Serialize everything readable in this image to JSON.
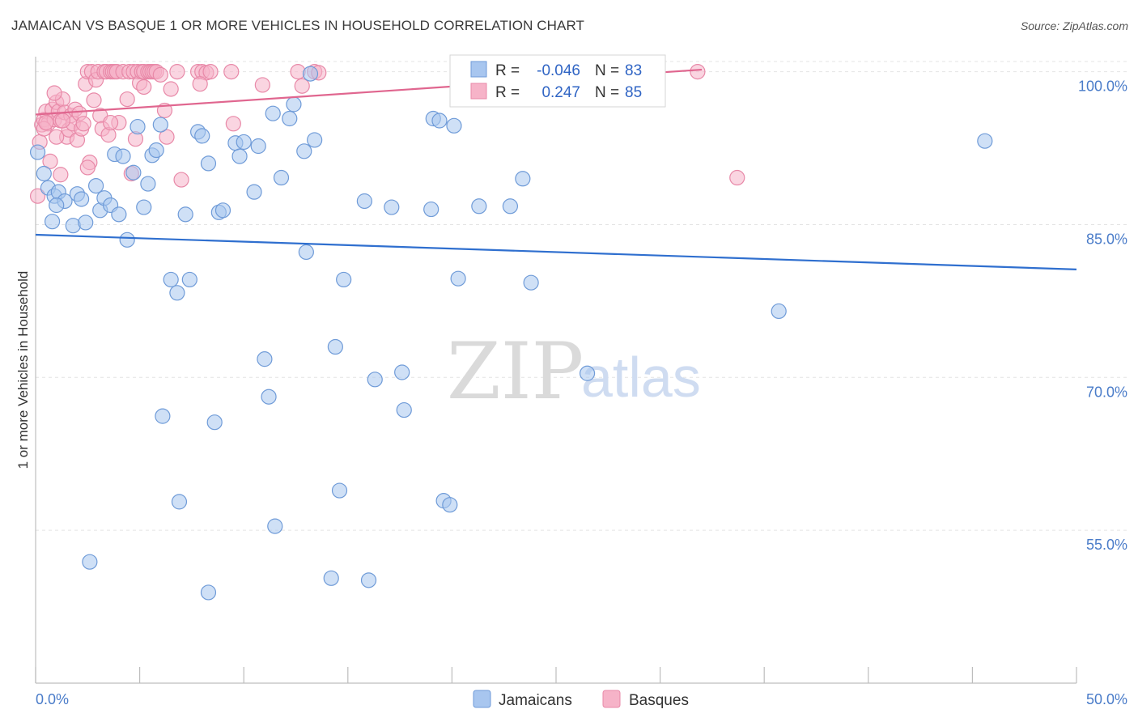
{
  "title": "JAMAICAN VS BASQUE 1 OR MORE VEHICLES IN HOUSEHOLD CORRELATION CHART",
  "source": "Source: ZipAtlas.com",
  "watermark": {
    "zip": "ZIP",
    "atlas": "atlas"
  },
  "colors": {
    "jamaican_fill": "#a8c6ef",
    "jamaican_stroke": "#6f9bd8",
    "jamaican_line": "#2f6fcf",
    "basque_fill": "#f6b3c8",
    "basque_stroke": "#e889a8",
    "basque_line": "#e0668f",
    "tick_text": "#4a7cc9",
    "grid": "#e4e4e4"
  },
  "legend_box": {
    "rows": [
      {
        "r_label": "R =",
        "r_value": "-0.046",
        "n_label": "N =",
        "n_value": "83"
      },
      {
        "r_label": "R =",
        "r_value": "0.247",
        "n_label": "N =",
        "n_value": "85"
      }
    ]
  },
  "bottom_legend": [
    "Jamaicans",
    "Basques"
  ],
  "chart_data": {
    "type": "scatter",
    "title": "JAMAICAN VS BASQUE 1 OR MORE VEHICLES IN HOUSEHOLD CORRELATION CHART",
    "xlabel": "",
    "ylabel": "1 or more Vehicles in Household",
    "xlim": [
      0,
      50
    ],
    "ylim": [
      40,
      101
    ],
    "x_tick_labels": [
      "0.0%",
      "50.0%"
    ],
    "y_ticks": [
      55,
      70,
      85,
      100
    ],
    "y_tick_labels": [
      "55.0%",
      "70.0%",
      "85.0%",
      "100.0%"
    ],
    "grid": true,
    "legend": "top-center",
    "series": [
      {
        "name": "Jamaicans",
        "R": -0.046,
        "N": 83,
        "trend": {
          "x": [
            0,
            50
          ],
          "y": [
            84.0,
            80.6
          ]
        },
        "points": [
          [
            0.1,
            92.1
          ],
          [
            0.4,
            90.0
          ],
          [
            0.6,
            88.6
          ],
          [
            0.8,
            85.3
          ],
          [
            0.9,
            87.8
          ],
          [
            1.1,
            88.2
          ],
          [
            1.4,
            87.3
          ],
          [
            1.8,
            84.9
          ],
          [
            2.0,
            88.0
          ],
          [
            2.2,
            87.5
          ],
          [
            2.4,
            85.2
          ],
          [
            2.9,
            88.8
          ],
          [
            3.1,
            86.4
          ],
          [
            3.3,
            87.6
          ],
          [
            3.6,
            86.9
          ],
          [
            3.8,
            91.9
          ],
          [
            4.0,
            86.0
          ],
          [
            4.2,
            91.7
          ],
          [
            4.4,
            83.5
          ],
          [
            4.7,
            90.1
          ],
          [
            4.9,
            94.6
          ],
          [
            5.2,
            86.7
          ],
          [
            5.4,
            89.0
          ],
          [
            5.6,
            91.8
          ],
          [
            5.8,
            92.3
          ],
          [
            6.0,
            94.8
          ],
          [
            6.5,
            79.6
          ],
          [
            6.8,
            78.3
          ],
          [
            7.2,
            86.0
          ],
          [
            7.4,
            79.6
          ],
          [
            7.8,
            94.1
          ],
          [
            8.0,
            93.7
          ],
          [
            8.3,
            91.0
          ],
          [
            8.8,
            86.2
          ],
          [
            9.0,
            86.4
          ],
          [
            9.6,
            93.0
          ],
          [
            9.8,
            91.7
          ],
          [
            10.0,
            93.1
          ],
          [
            10.5,
            88.2
          ],
          [
            10.7,
            92.7
          ],
          [
            11.0,
            71.8
          ],
          [
            11.2,
            68.1
          ],
          [
            11.4,
            95.9
          ],
          [
            11.8,
            89.6
          ],
          [
            12.2,
            95.4
          ],
          [
            12.4,
            96.8
          ],
          [
            12.9,
            92.2
          ],
          [
            13.0,
            82.3
          ],
          [
            13.2,
            99.8
          ],
          [
            13.4,
            93.3
          ],
          [
            14.4,
            73.0
          ],
          [
            14.6,
            58.9
          ],
          [
            14.8,
            79.6
          ],
          [
            15.8,
            87.3
          ],
          [
            16.3,
            69.8
          ],
          [
            17.1,
            86.7
          ],
          [
            17.6,
            70.5
          ],
          [
            17.7,
            66.8
          ],
          [
            19.1,
            95.4
          ],
          [
            19.0,
            86.5
          ],
          [
            19.4,
            95.2
          ],
          [
            19.6,
            57.9
          ],
          [
            19.9,
            57.5
          ],
          [
            20.1,
            94.7
          ],
          [
            20.3,
            79.7
          ],
          [
            21.3,
            86.8
          ],
          [
            22.8,
            86.8
          ],
          [
            23.4,
            89.5
          ],
          [
            23.8,
            79.3
          ],
          [
            26.5,
            70.4
          ],
          [
            28.0,
            97.6
          ],
          [
            29.6,
            100.0
          ],
          [
            35.7,
            76.5
          ],
          [
            45.6,
            93.2
          ],
          [
            2.6,
            51.9
          ],
          [
            6.1,
            66.2
          ],
          [
            6.9,
            57.8
          ],
          [
            8.3,
            48.9
          ],
          [
            8.6,
            65.6
          ],
          [
            11.5,
            55.4
          ],
          [
            14.2,
            50.3
          ],
          [
            16.0,
            50.1
          ],
          [
            1.0,
            86.9
          ]
        ]
      },
      {
        "name": "Basques",
        "R": 0.247,
        "N": 85,
        "trend": {
          "x": [
            0,
            32
          ],
          "y": [
            95.8,
            100.2
          ]
        },
        "points": [
          [
            0.1,
            87.8
          ],
          [
            0.2,
            93.1
          ],
          [
            0.3,
            94.8
          ],
          [
            0.4,
            95.3
          ],
          [
            0.5,
            96.1
          ],
          [
            0.6,
            94.9
          ],
          [
            0.7,
            91.2
          ],
          [
            0.8,
            96.3
          ],
          [
            0.9,
            95.3
          ],
          [
            1.0,
            97.0
          ],
          [
            1.1,
            96.1
          ],
          [
            1.2,
            95.2
          ],
          [
            1.3,
            97.3
          ],
          [
            1.4,
            96.0
          ],
          [
            1.5,
            93.6
          ],
          [
            1.6,
            94.3
          ],
          [
            1.7,
            95.7
          ],
          [
            1.8,
            94.9
          ],
          [
            1.9,
            96.3
          ],
          [
            2.0,
            93.3
          ],
          [
            2.1,
            95.9
          ],
          [
            2.2,
            94.4
          ],
          [
            2.3,
            94.9
          ],
          [
            2.4,
            98.8
          ],
          [
            2.5,
            100.0
          ],
          [
            2.6,
            91.1
          ],
          [
            2.7,
            100.0
          ],
          [
            2.8,
            97.2
          ],
          [
            2.9,
            99.2
          ],
          [
            3.0,
            100.0
          ],
          [
            3.1,
            95.7
          ],
          [
            3.2,
            94.4
          ],
          [
            3.3,
            100.0
          ],
          [
            3.4,
            100.0
          ],
          [
            3.5,
            93.8
          ],
          [
            3.6,
            100.0
          ],
          [
            3.7,
            100.0
          ],
          [
            3.8,
            100.0
          ],
          [
            3.9,
            100.0
          ],
          [
            4.0,
            95.0
          ],
          [
            4.2,
            100.0
          ],
          [
            4.4,
            97.3
          ],
          [
            4.5,
            100.0
          ],
          [
            4.7,
            100.0
          ],
          [
            4.8,
            93.4
          ],
          [
            4.9,
            100.0
          ],
          [
            5.0,
            98.9
          ],
          [
            5.1,
            100.0
          ],
          [
            5.2,
            100.0
          ],
          [
            5.4,
            100.0
          ],
          [
            5.5,
            100.0
          ],
          [
            5.6,
            100.0
          ],
          [
            5.7,
            100.0
          ],
          [
            5.8,
            100.0
          ],
          [
            6.0,
            99.7
          ],
          [
            6.2,
            96.2
          ],
          [
            6.5,
            98.3
          ],
          [
            6.8,
            100.0
          ],
          [
            7.0,
            89.4
          ],
          [
            7.8,
            100.0
          ],
          [
            8.0,
            100.0
          ],
          [
            8.2,
            99.9
          ],
          [
            8.4,
            100.0
          ],
          [
            9.4,
            100.0
          ],
          [
            9.5,
            94.9
          ],
          [
            10.9,
            98.7
          ],
          [
            12.6,
            100.0
          ],
          [
            12.8,
            98.6
          ],
          [
            13.4,
            100.0
          ],
          [
            13.6,
            99.9
          ],
          [
            21.3,
            100.0
          ],
          [
            31.8,
            100.0
          ],
          [
            33.7,
            89.6
          ],
          [
            0.4,
            94.4
          ],
          [
            0.5,
            95.0
          ],
          [
            1.3,
            95.2
          ],
          [
            2.5,
            90.6
          ],
          [
            3.6,
            95.0
          ],
          [
            4.6,
            90.0
          ],
          [
            5.2,
            98.5
          ],
          [
            6.3,
            93.6
          ],
          [
            7.9,
            98.8
          ],
          [
            1.0,
            93.6
          ],
          [
            1.2,
            89.9
          ],
          [
            0.9,
            97.9
          ]
        ]
      }
    ]
  }
}
